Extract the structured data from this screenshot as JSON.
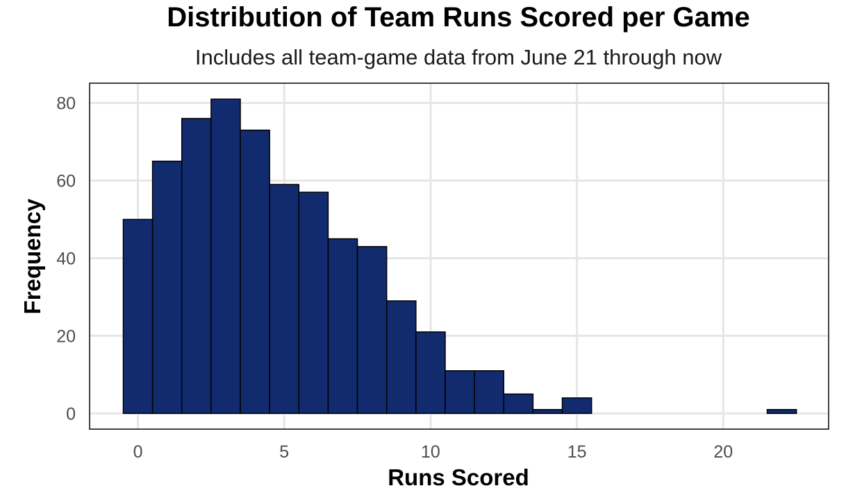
{
  "chart_data": {
    "type": "bar",
    "title": "Distribution of Team Runs Scored per Game",
    "subtitle": "Includes all team-game data from June 21 through now",
    "xlabel": "Runs Scored",
    "ylabel": "Frequency",
    "x": [
      0,
      1,
      2,
      3,
      4,
      5,
      6,
      7,
      8,
      9,
      10,
      11,
      12,
      13,
      14,
      15,
      16,
      17,
      18,
      19,
      20,
      21,
      22
    ],
    "values": [
      50,
      65,
      76,
      81,
      73,
      59,
      57,
      45,
      43,
      29,
      21,
      11,
      11,
      5,
      1,
      4,
      0,
      0,
      0,
      0,
      0,
      0,
      1
    ],
    "xlim": [
      -1.65,
      23.6
    ],
    "ylim": [
      -4.05,
      85.1
    ],
    "xticks": [
      0,
      5,
      10,
      15,
      20
    ],
    "yticks": [
      0,
      20,
      40,
      60,
      80
    ],
    "xtick_labels": [
      "0",
      "5",
      "10",
      "15",
      "20"
    ],
    "ytick_labels": [
      "0",
      "20",
      "40",
      "60",
      "80"
    ],
    "grid": true,
    "legend": "none",
    "bar_color": "#112b6e",
    "bar_outline_color": "#000000",
    "grid_color": "#e6e6e6"
  }
}
